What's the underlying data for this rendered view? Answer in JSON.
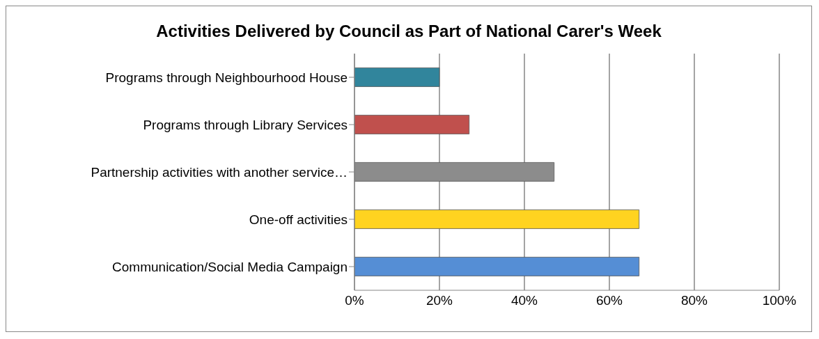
{
  "chart_data": {
    "type": "bar",
    "orientation": "horizontal",
    "title": "Activities Delivered by Council as Part of National Carer's Week",
    "categories": [
      "Programs through Neighbourhood House",
      "Programs through Library Services",
      "Partnership activities with another service…",
      "One-off activities",
      "Communication/Social Media Campaign"
    ],
    "values": [
      20,
      27,
      47,
      67,
      67
    ],
    "colors": [
      "#31859c",
      "#c0504d",
      "#8c8c8c",
      "#ffd320",
      "#558ed5"
    ],
    "xlim": [
      0,
      100
    ],
    "xticks": [
      {
        "value": 0,
        "label": "0%"
      },
      {
        "value": 20,
        "label": "20%"
      },
      {
        "value": 40,
        "label": "40%"
      },
      {
        "value": 60,
        "label": "60%"
      },
      {
        "value": 80,
        "label": "80%"
      },
      {
        "value": 100,
        "label": "100%"
      }
    ],
    "grid": "x"
  }
}
